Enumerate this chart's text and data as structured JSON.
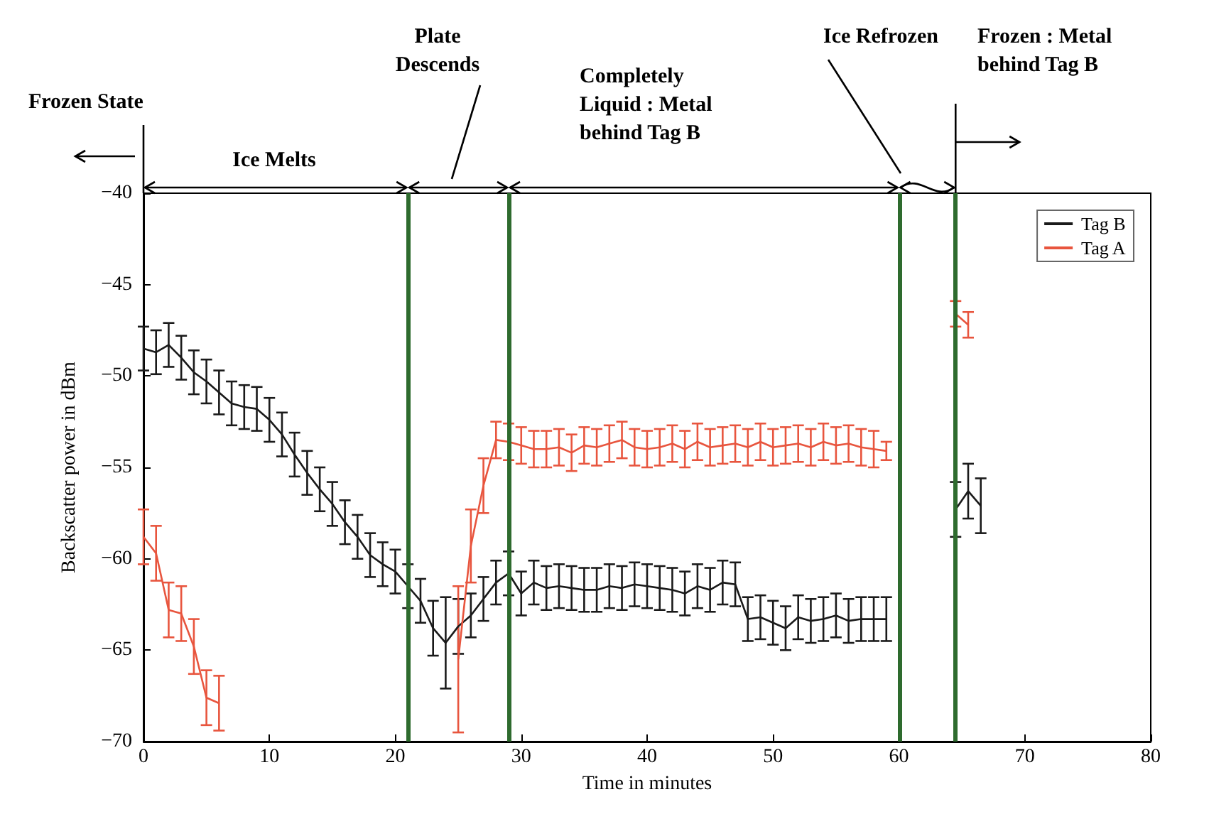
{
  "chart_data": {
    "type": "line",
    "xlabel": "Time in minutes",
    "ylabel": "Backscatter power in dBm",
    "xlim": [
      0,
      80
    ],
    "xticks": [
      0,
      10,
      20,
      30,
      40,
      50,
      60,
      70,
      80
    ],
    "ylim": [
      -70,
      -40
    ],
    "yticks": [
      -70,
      -65,
      -60,
      -55,
      -50,
      -45,
      -40
    ],
    "grid": false,
    "legend": "top right",
    "marker": "none",
    "line_style": "solid",
    "series": [
      {
        "name": "Tag B",
        "color": "#1a1a1a",
        "x": [
          0,
          1,
          2,
          3,
          4,
          5,
          6,
          7,
          8,
          9,
          10,
          11,
          12,
          13,
          14,
          15,
          16,
          17,
          18,
          19,
          20,
          21,
          22,
          23,
          24,
          25,
          26,
          27,
          28,
          29,
          30,
          31,
          32,
          33,
          34,
          35,
          36,
          37,
          38,
          39,
          40,
          41,
          42,
          43,
          44,
          45,
          46,
          47,
          48,
          49,
          50,
          51,
          52,
          53,
          54,
          55,
          56,
          57,
          58,
          59,
          62,
          64.5,
          65.5,
          66.5
        ],
        "values": [
          -48.5,
          -48.7,
          -48.3,
          -49.0,
          -49.8,
          -50.3,
          -50.9,
          -51.5,
          -51.7,
          -51.8,
          -52.4,
          -53.2,
          -54.3,
          -55.3,
          -56.2,
          -57.0,
          -58.0,
          -58.8,
          -59.8,
          -60.3,
          -60.7,
          -61.5,
          -62.3,
          -63.8,
          -64.6,
          -63.7,
          -63.1,
          -62.2,
          -61.3,
          -60.8,
          -61.9,
          -61.3,
          -61.6,
          -61.5,
          -61.6,
          -61.7,
          -61.7,
          -61.5,
          -61.6,
          -61.4,
          -61.5,
          -61.6,
          -61.7,
          -61.9,
          -61.5,
          -61.7,
          -61.3,
          -61.4,
          -63.3,
          -63.2,
          -63.5,
          -63.8,
          -63.2,
          -63.4,
          -63.3,
          -63.1,
          -63.4,
          -63.3,
          -63.3,
          -63.3,
          null,
          -57.3,
          -56.3,
          -57.1
        ],
        "errors": [
          1.2,
          1.2,
          1.2,
          1.2,
          1.2,
          1.2,
          1.2,
          1.2,
          1.2,
          1.2,
          1.2,
          1.2,
          1.2,
          1.2,
          1.2,
          1.2,
          1.2,
          1.2,
          1.2,
          1.2,
          1.2,
          1.2,
          1.2,
          1.5,
          2.5,
          1.5,
          1.2,
          1.2,
          1.2,
          1.2,
          1.2,
          1.2,
          1.2,
          1.2,
          1.2,
          1.2,
          1.2,
          1.2,
          1.2,
          1.2,
          1.2,
          1.2,
          1.2,
          1.2,
          1.2,
          1.2,
          1.2,
          1.2,
          1.2,
          1.2,
          1.2,
          1.2,
          1.2,
          1.2,
          1.2,
          1.2,
          1.2,
          1.2,
          1.2,
          1.2,
          null,
          1.5,
          1.5,
          1.5
        ]
      },
      {
        "name": "Tag A",
        "color": "#e8553e",
        "x": [
          0,
          1,
          2,
          3,
          4,
          5,
          6,
          10,
          25,
          26,
          27,
          28,
          29,
          30,
          31,
          32,
          33,
          34,
          35,
          36,
          37,
          38,
          39,
          40,
          41,
          42,
          43,
          44,
          45,
          46,
          47,
          48,
          49,
          50,
          51,
          52,
          53,
          54,
          55,
          56,
          57,
          58,
          59,
          62,
          64.5,
          65.5
        ],
        "values": [
          -58.8,
          -59.7,
          -62.8,
          -63.0,
          -64.8,
          -67.6,
          -67.9,
          null,
          -65.5,
          -59.3,
          -56.0,
          -53.5,
          -53.6,
          -53.8,
          -54.0,
          -54.0,
          -53.9,
          -54.2,
          -53.8,
          -53.9,
          -53.7,
          -53.5,
          -53.9,
          -54.0,
          -53.9,
          -53.7,
          -54.0,
          -53.6,
          -53.9,
          -53.8,
          -53.7,
          -53.9,
          -53.6,
          -53.9,
          -53.8,
          -53.7,
          -53.9,
          -53.6,
          -53.8,
          -53.7,
          -53.9,
          -54.0,
          -54.1,
          null,
          -46.6,
          -47.2
        ],
        "errors": [
          1.5,
          1.5,
          1.5,
          1.5,
          1.5,
          1.5,
          1.5,
          null,
          4,
          2,
          1.5,
          1,
          1,
          1,
          1,
          1,
          1,
          1,
          1,
          1,
          1,
          1,
          1,
          1,
          1,
          1,
          1,
          1,
          1,
          1,
          1,
          1,
          1,
          1,
          1,
          1,
          1,
          1,
          1,
          1,
          1,
          1,
          0.5,
          null,
          0.7,
          0.7
        ]
      }
    ],
    "ref_lines": [
      {
        "axis": "x",
        "value": 21,
        "color": "#2e6b2e"
      },
      {
        "axis": "x",
        "value": 29,
        "color": "#2e6b2e"
      },
      {
        "axis": "x",
        "value": 60,
        "color": "#2e6b2e"
      },
      {
        "axis": "x",
        "value": 64.5,
        "color": "#2e6b2e"
      }
    ],
    "annotations": [
      "Frozen State",
      "Ice Melts",
      "Plate Descends",
      "Completely Liquid : Metal behind Tag B",
      "Ice Refrozen",
      "Frozen : Metal behind Tag B"
    ]
  }
}
